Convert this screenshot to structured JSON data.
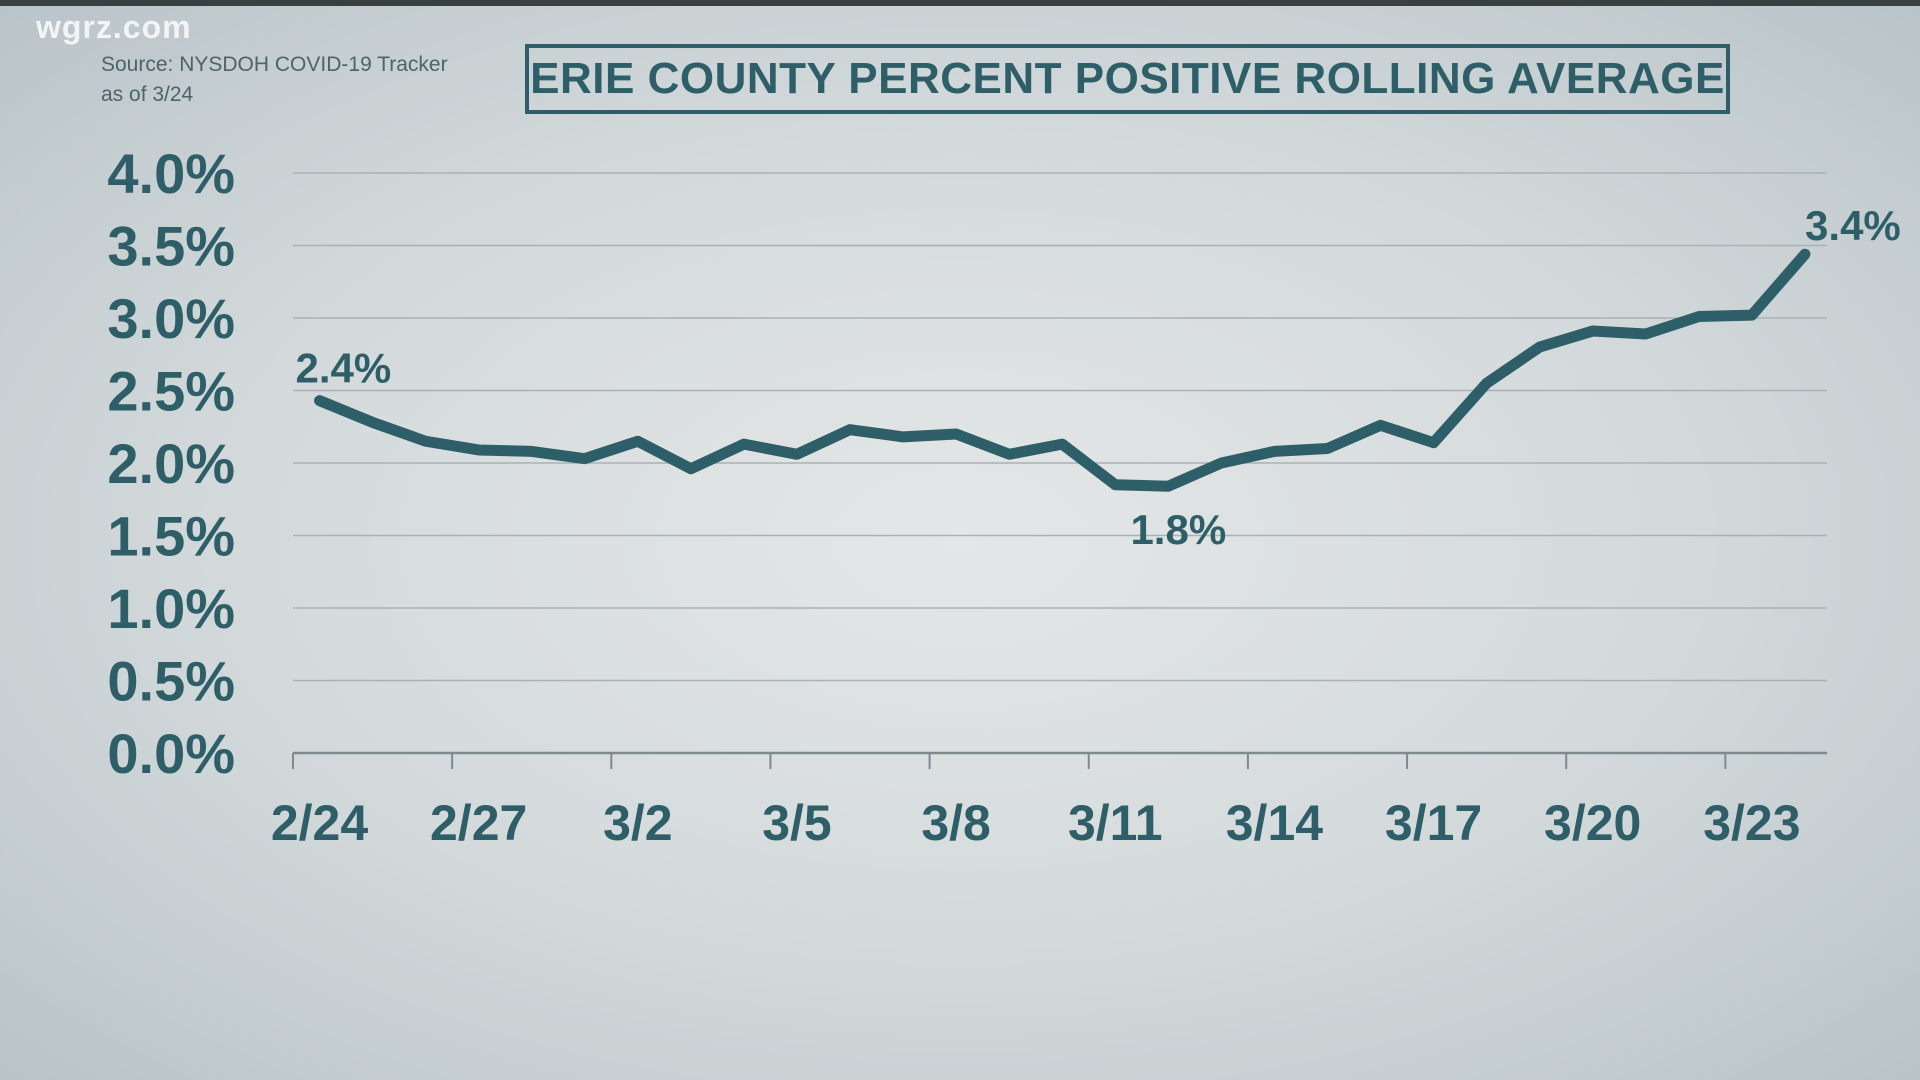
{
  "watermark": "wgrz.com",
  "source": {
    "line1": "Source: NYSDOH COVID-19 Tracker",
    "line2": "as of 3/24"
  },
  "colors": {
    "line": "#2e5f68",
    "grid": "#a9b1b4",
    "text": "#2e5f68"
  },
  "chart_data": {
    "type": "line",
    "title": "ERIE COUNTY PERCENT POSITIVE ROLLING AVERAGE",
    "xlabel": "",
    "ylabel": "",
    "ylim": [
      0,
      4.0
    ],
    "grid": true,
    "y_ticks": [
      "0.0%",
      "0.5%",
      "1.0%",
      "1.5%",
      "2.0%",
      "2.5%",
      "3.0%",
      "3.5%",
      "4.0%"
    ],
    "x_ticks": [
      "2/24",
      "2/27",
      "3/2",
      "3/5",
      "3/8",
      "3/11",
      "3/14",
      "3/17",
      "3/20",
      "3/23"
    ],
    "x": [
      "2/24",
      "2/25",
      "2/26",
      "2/27",
      "2/28",
      "3/1",
      "3/2",
      "3/3",
      "3/4",
      "3/5",
      "3/6",
      "3/7",
      "3/8",
      "3/9",
      "3/10",
      "3/11",
      "3/12",
      "3/13",
      "3/14",
      "3/15",
      "3/16",
      "3/17",
      "3/18",
      "3/19",
      "3/20",
      "3/21",
      "3/22",
      "3/23",
      "3/24"
    ],
    "values": [
      2.43,
      2.28,
      2.15,
      2.09,
      2.08,
      2.03,
      2.15,
      1.96,
      2.13,
      2.06,
      2.23,
      2.18,
      2.2,
      2.06,
      2.13,
      1.85,
      1.84,
      2.0,
      2.08,
      2.1,
      2.26,
      2.14,
      2.55,
      2.8,
      2.91,
      2.89,
      3.01,
      3.02,
      3.44
    ],
    "annotations": [
      {
        "x": "2/24",
        "label": "2.4%"
      },
      {
        "x": "3/12",
        "label": "1.8%"
      },
      {
        "x": "3/24",
        "label": "3.4%"
      }
    ]
  }
}
